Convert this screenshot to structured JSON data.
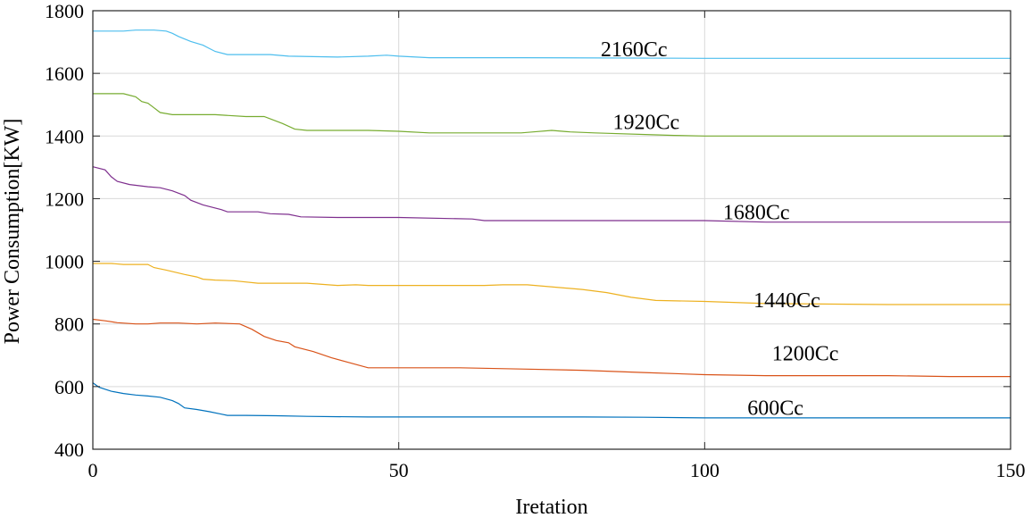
{
  "chart_data": {
    "type": "line",
    "title": "",
    "xlabel": "Iretation",
    "ylabel": "Power Consumption[KW]",
    "xlim": [
      0,
      150
    ],
    "ylim": [
      400,
      1800
    ],
    "xticks": [
      0,
      50,
      100,
      150
    ],
    "yticks": [
      400,
      600,
      800,
      1000,
      1200,
      1400,
      1600,
      1800
    ],
    "xtick_labels": [
      "0",
      "50",
      "100",
      "150"
    ],
    "ytick_labels": [
      "400",
      "600",
      "800",
      "1000",
      "1200",
      "1400",
      "1600",
      "1800"
    ],
    "grid": true,
    "series": [
      {
        "name": "600Cc",
        "color": "#0072BD",
        "label_at": [
          107,
          510
        ],
        "points": [
          [
            0,
            612
          ],
          [
            1,
            598
          ],
          [
            3,
            585
          ],
          [
            5,
            578
          ],
          [
            7,
            573
          ],
          [
            9,
            570
          ],
          [
            11,
            566
          ],
          [
            13,
            555
          ],
          [
            14,
            546
          ],
          [
            15,
            532
          ],
          [
            17,
            527
          ],
          [
            19,
            520
          ],
          [
            21,
            512
          ],
          [
            22,
            508
          ],
          [
            25,
            508
          ],
          [
            30,
            507
          ],
          [
            35,
            505
          ],
          [
            45,
            503
          ],
          [
            60,
            503
          ],
          [
            80,
            503
          ],
          [
            90,
            502
          ],
          [
            100,
            500
          ],
          [
            120,
            500
          ],
          [
            150,
            500
          ]
        ]
      },
      {
        "name": "1200Cc",
        "color": "#D95319",
        "label_at": [
          111,
          683
        ],
        "points": [
          [
            0,
            815
          ],
          [
            2,
            810
          ],
          [
            4,
            804
          ],
          [
            7,
            800
          ],
          [
            9,
            800
          ],
          [
            11,
            803
          ],
          [
            14,
            803
          ],
          [
            17,
            800
          ],
          [
            20,
            803
          ],
          [
            24,
            800
          ],
          [
            26,
            783
          ],
          [
            28,
            760
          ],
          [
            30,
            747
          ],
          [
            32,
            740
          ],
          [
            33,
            727
          ],
          [
            36,
            712
          ],
          [
            39,
            692
          ],
          [
            42,
            676
          ],
          [
            45,
            660
          ],
          [
            60,
            660
          ],
          [
            70,
            656
          ],
          [
            80,
            652
          ],
          [
            90,
            645
          ],
          [
            100,
            638
          ],
          [
            110,
            635
          ],
          [
            130,
            635
          ],
          [
            140,
            632
          ],
          [
            150,
            632
          ]
        ]
      },
      {
        "name": "1440Cc",
        "color": "#EDB120",
        "label_at": [
          108,
          854
        ],
        "points": [
          [
            0,
            993
          ],
          [
            3,
            993
          ],
          [
            5,
            990
          ],
          [
            9,
            990
          ],
          [
            10,
            980
          ],
          [
            12,
            972
          ],
          [
            15,
            958
          ],
          [
            17,
            950
          ],
          [
            18,
            943
          ],
          [
            20,
            940
          ],
          [
            23,
            938
          ],
          [
            27,
            930
          ],
          [
            35,
            930
          ],
          [
            40,
            923
          ],
          [
            43,
            925
          ],
          [
            45,
            923
          ],
          [
            60,
            923
          ],
          [
            64,
            923
          ],
          [
            67,
            925
          ],
          [
            71,
            925
          ],
          [
            80,
            910
          ],
          [
            84,
            900
          ],
          [
            88,
            885
          ],
          [
            92,
            875
          ],
          [
            100,
            872
          ],
          [
            110,
            865
          ],
          [
            130,
            862
          ],
          [
            150,
            862
          ]
        ]
      },
      {
        "name": "1680Cc",
        "color": "#7E2F8E",
        "label_at": [
          103,
          1134
        ],
        "points": [
          [
            0,
            1302
          ],
          [
            2,
            1292
          ],
          [
            3,
            1270
          ],
          [
            4,
            1255
          ],
          [
            6,
            1245
          ],
          [
            9,
            1238
          ],
          [
            11,
            1235
          ],
          [
            13,
            1225
          ],
          [
            15,
            1210
          ],
          [
            16,
            1195
          ],
          [
            18,
            1180
          ],
          [
            21,
            1165
          ],
          [
            22,
            1158
          ],
          [
            27,
            1158
          ],
          [
            29,
            1152
          ],
          [
            32,
            1150
          ],
          [
            34,
            1142
          ],
          [
            40,
            1140
          ],
          [
            50,
            1140
          ],
          [
            62,
            1135
          ],
          [
            64,
            1130
          ],
          [
            80,
            1130
          ],
          [
            90,
            1130
          ],
          [
            100,
            1130
          ],
          [
            110,
            1125
          ],
          [
            150,
            1125
          ]
        ]
      },
      {
        "name": "1920Cc",
        "color": "#77AC30",
        "label_at": [
          85,
          1422
        ],
        "points": [
          [
            0,
            1535
          ],
          [
            5,
            1535
          ],
          [
            7,
            1525
          ],
          [
            8,
            1510
          ],
          [
            9,
            1505
          ],
          [
            10,
            1490
          ],
          [
            11,
            1475
          ],
          [
            13,
            1468
          ],
          [
            20,
            1468
          ],
          [
            25,
            1462
          ],
          [
            28,
            1462
          ],
          [
            31,
            1440
          ],
          [
            33,
            1422
          ],
          [
            35,
            1418
          ],
          [
            45,
            1418
          ],
          [
            50,
            1415
          ],
          [
            55,
            1410
          ],
          [
            62,
            1410
          ],
          [
            70,
            1410
          ],
          [
            72,
            1413
          ],
          [
            75,
            1418
          ],
          [
            78,
            1413
          ],
          [
            82,
            1410
          ],
          [
            95,
            1402
          ],
          [
            100,
            1400
          ],
          [
            130,
            1400
          ],
          [
            150,
            1400
          ]
        ]
      },
      {
        "name": "2160Cc",
        "color": "#4DBEEE",
        "label_at": [
          83,
          1654
        ],
        "points": [
          [
            0,
            1735
          ],
          [
            5,
            1735
          ],
          [
            7,
            1738
          ],
          [
            10,
            1738
          ],
          [
            12,
            1735
          ],
          [
            13,
            1728
          ],
          [
            14,
            1718
          ],
          [
            16,
            1702
          ],
          [
            18,
            1690
          ],
          [
            19,
            1680
          ],
          [
            20,
            1670
          ],
          [
            22,
            1660
          ],
          [
            29,
            1660
          ],
          [
            32,
            1655
          ],
          [
            40,
            1652
          ],
          [
            45,
            1655
          ],
          [
            48,
            1658
          ],
          [
            50,
            1655
          ],
          [
            55,
            1650
          ],
          [
            70,
            1650
          ],
          [
            100,
            1648
          ],
          [
            150,
            1648
          ]
        ]
      }
    ]
  }
}
